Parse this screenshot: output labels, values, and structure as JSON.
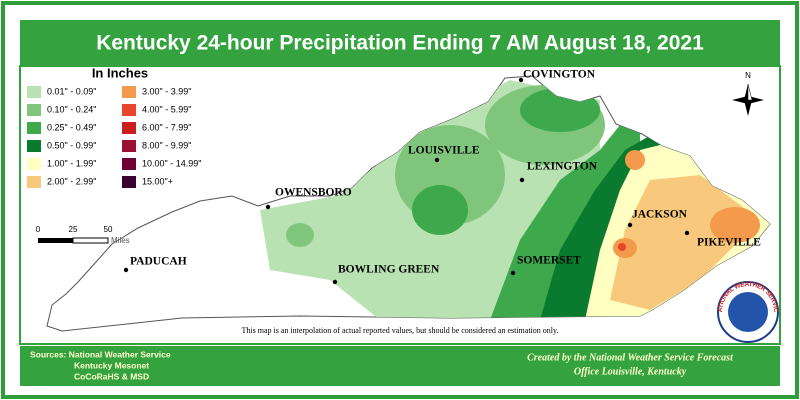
{
  "title": "Kentucky 24-hour Precipitation Ending 7 AM  August 18, 2021",
  "legend": {
    "title": "In Inches",
    "items": [
      {
        "label": "0.01\" - 0.09\"",
        "color": "#b9e2b2"
      },
      {
        "label": "0.10\" - 0.24\"",
        "color": "#7fc57c"
      },
      {
        "label": "0.25\" - 0.49\"",
        "color": "#3ea94c"
      },
      {
        "label": "0.50\" - 0.99\"",
        "color": "#0a7a2e"
      },
      {
        "label": "1.00\" - 1.99\"",
        "color": "#ffffc2"
      },
      {
        "label": "2.00\" - 2.99\"",
        "color": "#f8c97c"
      },
      {
        "label": "3.00\" - 3.99\"",
        "color": "#f39a4c"
      },
      {
        "label": "4.00\" - 5.99\"",
        "color": "#e8452d"
      },
      {
        "label": "6.00\" - 7.99\"",
        "color": "#c8201f"
      },
      {
        "label": "8.00\" - 9.99\"",
        "color": "#9a1032"
      },
      {
        "label": "10.00\" - 14.99\"",
        "color": "#6e0032"
      },
      {
        "label": "15.00\"+",
        "color": "#3a0030"
      }
    ]
  },
  "cities": [
    "COVINGTON",
    "LOUISVILLE",
    "LEXINGTON",
    "OWENSBORO",
    "JACKSON",
    "PIKEVILLE",
    "PADUCAH",
    "BOWLING GREEN",
    "SOMERSET"
  ],
  "scale": {
    "labels": [
      "0",
      "25",
      "50"
    ],
    "unit": "Miles"
  },
  "compass": "N",
  "logo": "NATIONAL WEATHER SERVICE",
  "disclaimer": "This map is an interpolation of actual reported values, but should be considered an estimation only.",
  "sources": [
    "Sources:  National Weather Service",
    "Kentucky Mesonet",
    "CoCoRaHS & MSD"
  ],
  "credit": [
    "Created by the National Weather Service Forecast",
    "Office Louisville, Kentucky"
  ]
}
